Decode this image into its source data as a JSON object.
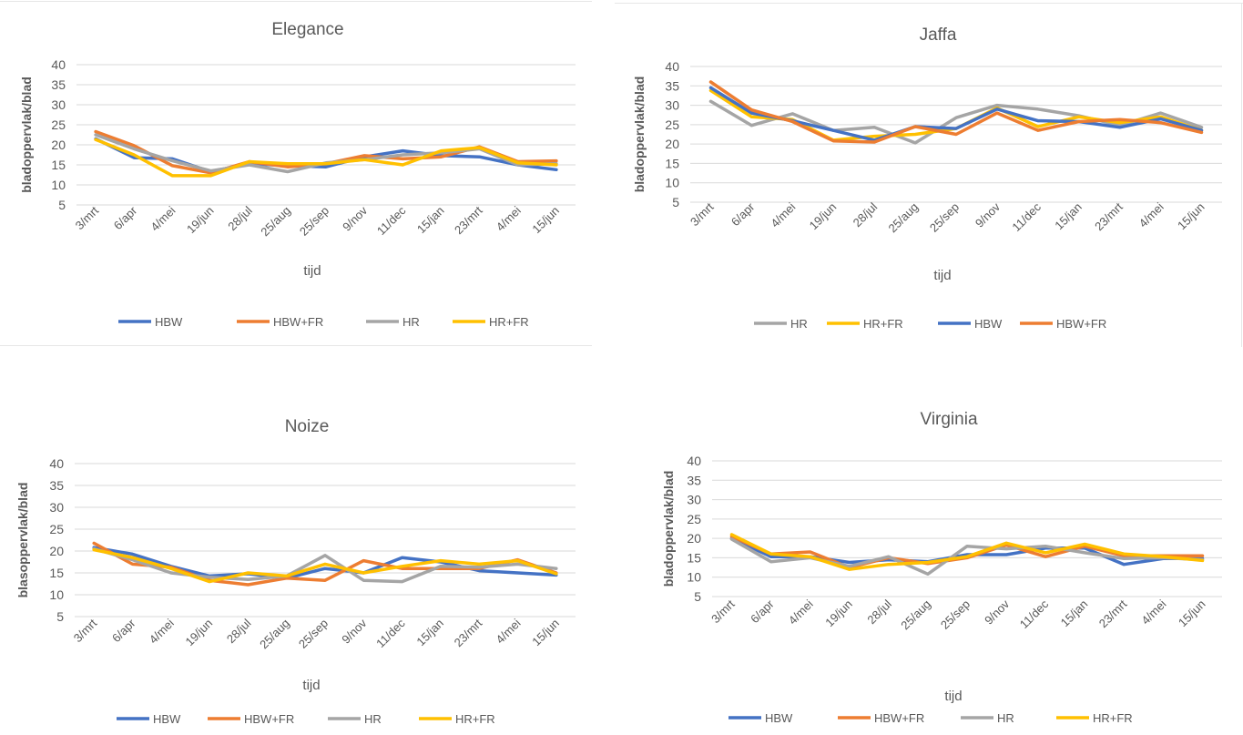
{
  "colors": {
    "HBW": "#4472C4",
    "HBW+FR": "#ED7D31",
    "HR": "#A5A5A5",
    "HR+FR": "#FFC000",
    "grid": "#d9d9d9",
    "text": "#595959"
  },
  "chart_data": [
    {
      "type": "line",
      "title": "Elegance",
      "xlabel": "tijd",
      "ylabel": "bladoppervlak/blad",
      "ylim": [
        5,
        40
      ],
      "yticks": [
        "5",
        "10",
        "15",
        "20",
        "25",
        "30",
        "35",
        "40"
      ],
      "categories": [
        "3/mrt",
        "6/apr",
        "4/mei",
        "19/jun",
        "28/jul",
        "25/aug",
        "25/sep",
        "9/nov",
        "11/dec",
        "15/jan",
        "23/mrt",
        "4/mei",
        "15/jun"
      ],
      "legend_position": "bottom",
      "series": [
        {
          "name": "HBW",
          "values": [
            21.5,
            16.8,
            16.5,
            13.3,
            15.3,
            14.8,
            14.5,
            17.0,
            18.5,
            17.3,
            17.0,
            15.0,
            13.8
          ]
        },
        {
          "name": "HBW+FR",
          "values": [
            23.3,
            19.8,
            14.8,
            13.0,
            15.8,
            14.5,
            15.3,
            17.3,
            16.5,
            17.0,
            19.5,
            15.8,
            16.0
          ]
        },
        {
          "name": "HR",
          "values": [
            22.5,
            19.0,
            16.0,
            13.5,
            15.0,
            13.3,
            15.5,
            16.3,
            17.5,
            18.0,
            19.0,
            15.0,
            15.3
          ]
        },
        {
          "name": "HR+FR",
          "values": [
            21.3,
            17.5,
            12.3,
            12.3,
            15.8,
            15.3,
            15.3,
            16.3,
            15.0,
            18.5,
            19.3,
            15.5,
            15.0
          ]
        }
      ]
    },
    {
      "type": "line",
      "title": "Jaffa",
      "xlabel": "tijd",
      "ylabel": "bladoppervlak/blad",
      "ylim": [
        5,
        40
      ],
      "yticks": [
        "5",
        "10",
        "15",
        "20",
        "25",
        "30",
        "35",
        "40"
      ],
      "categories": [
        "3/mrt",
        "6/apr",
        "4/mei",
        "19/jun",
        "28/jul",
        "25/aug",
        "25/sep",
        "9/nov",
        "11/dec",
        "15/jan",
        "23/mrt",
        "4/mei",
        "15/jun"
      ],
      "legend_position": "bottom",
      "series": [
        {
          "name": "HR",
          "values": [
            31.0,
            24.8,
            27.8,
            23.5,
            24.3,
            20.3,
            26.8,
            30.0,
            29.0,
            27.3,
            24.8,
            28.0,
            24.3
          ]
        },
        {
          "name": "HR+FR",
          "values": [
            33.8,
            27.0,
            26.3,
            21.0,
            22.0,
            22.5,
            24.0,
            29.3,
            24.5,
            27.0,
            25.5,
            27.0,
            23.5
          ]
        },
        {
          "name": "HBW",
          "values": [
            34.5,
            28.0,
            26.0,
            23.5,
            21.0,
            24.5,
            24.0,
            29.0,
            26.0,
            25.8,
            24.3,
            26.5,
            23.5
          ]
        },
        {
          "name": "HBW+FR",
          "values": [
            36.0,
            28.8,
            25.8,
            20.8,
            20.5,
            24.5,
            22.5,
            28.0,
            23.5,
            25.8,
            26.3,
            25.5,
            23.0
          ]
        }
      ]
    },
    {
      "type": "line",
      "title": "Noize",
      "xlabel": "tijd",
      "ylabel": "blasoppervlak/blad",
      "ylim": [
        5,
        40
      ],
      "yticks": [
        "5",
        "10",
        "15",
        "20",
        "25",
        "30",
        "35",
        "40"
      ],
      "categories": [
        "3/mrt",
        "6/apr",
        "4/mei",
        "19/jun",
        "28/jul",
        "25/aug",
        "25/sep",
        "9/nov",
        "11/dec",
        "15/jan",
        "23/mrt",
        "4/mei",
        "15/jun"
      ],
      "legend_position": "bottom",
      "series": [
        {
          "name": "HBW",
          "values": [
            20.8,
            19.3,
            16.5,
            14.3,
            14.8,
            13.8,
            16.0,
            15.0,
            18.5,
            17.5,
            15.5,
            15.0,
            14.5
          ]
        },
        {
          "name": "HBW+FR",
          "values": [
            21.8,
            17.0,
            16.3,
            13.3,
            12.3,
            13.8,
            13.3,
            17.8,
            16.0,
            16.0,
            16.0,
            18.0,
            15.0
          ]
        },
        {
          "name": "HR",
          "values": [
            20.5,
            18.0,
            15.0,
            14.0,
            13.5,
            14.3,
            19.0,
            13.3,
            13.0,
            16.5,
            16.3,
            17.0,
            16.0
          ]
        },
        {
          "name": "HR+FR",
          "values": [
            20.3,
            18.5,
            16.0,
            13.0,
            15.0,
            14.3,
            17.0,
            15.0,
            16.5,
            17.8,
            17.0,
            17.8,
            14.8
          ]
        }
      ]
    },
    {
      "type": "line",
      "title": "Virginia",
      "xlabel": "tijd",
      "ylabel": "bladoppervlak/blad",
      "ylim": [
        5,
        40
      ],
      "yticks": [
        "5",
        "10",
        "15",
        "20",
        "25",
        "30",
        "35",
        "40"
      ],
      "categories": [
        "3/mrt",
        "6/apr",
        "4/mei",
        "19/jun",
        "28/jul",
        "25/aug",
        "25/sep",
        "9/nov",
        "11/dec",
        "15/jan",
        "23/mrt",
        "4/mei",
        "15/jun"
      ],
      "legend_position": "bottom",
      "series": [
        {
          "name": "HBW",
          "values": [
            20.0,
            15.3,
            15.3,
            13.8,
            14.5,
            14.0,
            15.8,
            15.8,
            17.5,
            17.5,
            13.3,
            14.8,
            14.8
          ]
        },
        {
          "name": "HBW+FR",
          "values": [
            20.5,
            16.0,
            16.5,
            12.5,
            15.0,
            13.5,
            15.0,
            18.3,
            15.3,
            18.0,
            15.5,
            15.5,
            15.5
          ]
        },
        {
          "name": "HR",
          "values": [
            19.8,
            14.0,
            15.0,
            12.8,
            15.3,
            10.8,
            18.0,
            17.3,
            18.0,
            16.3,
            14.8,
            15.0,
            14.5
          ]
        },
        {
          "name": "HR+FR",
          "values": [
            21.0,
            16.0,
            15.3,
            12.0,
            13.3,
            13.8,
            15.3,
            18.8,
            16.3,
            18.5,
            16.0,
            15.3,
            14.3
          ]
        }
      ]
    }
  ]
}
